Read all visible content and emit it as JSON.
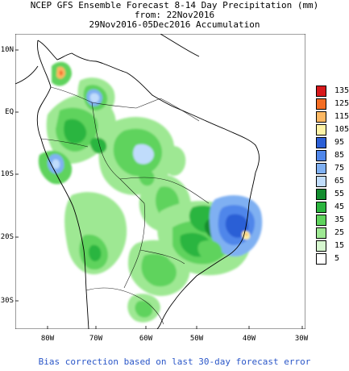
{
  "title": {
    "line1": "NCEP GFS Ensemble Forecast 8-14 Day Precipitation (mm)",
    "line2": "from: 22Nov2016",
    "line3": "29Nov2016-05Dec2016 Accumulation"
  },
  "axes": {
    "lat_labels": [
      "10N",
      "EQ",
      "10S",
      "20S",
      "30S"
    ],
    "lon_labels": [
      "80W",
      "70W",
      "60W",
      "50W",
      "40W",
      "30W"
    ]
  },
  "legend": {
    "entries": [
      {
        "label": "135",
        "color": "#d7191c"
      },
      {
        "label": "125",
        "color": "#f46d23"
      },
      {
        "label": "115",
        "color": "#fdb863"
      },
      {
        "label": "105",
        "color": "#fff3a6"
      },
      {
        "label": "95",
        "color": "#2c5fd6"
      },
      {
        "label": "85",
        "color": "#4f86ea"
      },
      {
        "label": "75",
        "color": "#7fb0f2"
      },
      {
        "label": "65",
        "color": "#c0dcfb"
      },
      {
        "label": "55",
        "color": "#138d2f"
      },
      {
        "label": "45",
        "color": "#2cb53f"
      },
      {
        "label": "35",
        "color": "#5fd35d"
      },
      {
        "label": "25",
        "color": "#9ee893"
      },
      {
        "label": "15",
        "color": "#d6f6cf"
      },
      {
        "label": "5",
        "color": "#ffffff"
      }
    ]
  },
  "footer": "Bias correction based on last 30-day forecast error"
}
